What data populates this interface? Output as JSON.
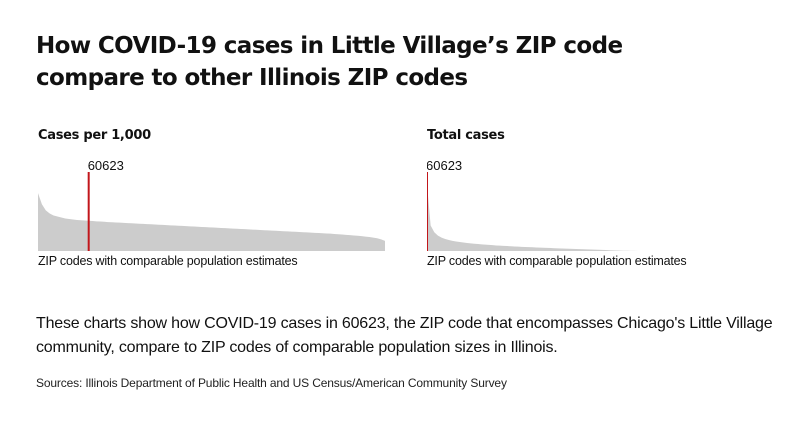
{
  "title_line1": "How COVID-19 cases in Little Village’s ZIP code",
  "title_line2": "compare to other Illinois ZIP codes",
  "chart_data": [
    {
      "type": "area",
      "title": "Cases per 1,000",
      "xlabel": "ZIP codes with comparable population estimates",
      "ylabel": "",
      "highlight": {
        "label": "60623",
        "index": 13
      },
      "values": [
        57,
        46,
        40,
        37,
        35,
        34,
        33,
        32,
        31.5,
        31,
        30.6,
        30.3,
        30,
        29.8,
        29.5,
        29.2,
        29,
        28.8,
        28.5,
        28.3,
        28.1,
        27.9,
        27.7,
        27.5,
        27.3,
        27.1,
        26.9,
        26.7,
        26.5,
        26.3,
        26.1,
        25.9,
        25.7,
        25.5,
        25.3,
        25.1,
        24.9,
        24.7,
        24.5,
        24.3,
        24.1,
        23.9,
        23.7,
        23.5,
        23.3,
        23.1,
        22.9,
        22.7,
        22.5,
        22.3,
        22.1,
        21.9,
        21.7,
        21.5,
        21.3,
        21.1,
        20.9,
        20.7,
        20.5,
        20.3,
        20.1,
        19.9,
        19.7,
        19.5,
        19.3,
        19.1,
        18.9,
        18.7,
        18.5,
        18.3,
        18.1,
        17.9,
        17.7,
        17.5,
        17.3,
        17.1,
        16.8,
        16.5,
        16.2,
        15.9,
        15.6,
        15.3,
        15,
        14.6,
        14.2,
        13.8,
        13.2,
        12.5,
        11.5,
        10
      ],
      "ylim": [
        0,
        66
      ]
    },
    {
      "type": "area",
      "title": "Total cases",
      "xlabel": "ZIP codes with comparable population estimates",
      "ylabel": "",
      "highlight": {
        "label": "60623",
        "index": 0
      },
      "values": [
        100,
        38,
        28,
        23,
        20,
        18,
        16.5,
        15.2,
        14.2,
        13.4,
        12.7,
        12,
        11.4,
        10.9,
        10.4,
        9.9,
        9.5,
        9.1,
        8.7,
        8.3,
        8,
        7.7,
        7.4,
        7.1,
        6.8,
        6.5,
        6.2,
        6,
        5.7,
        5.5,
        5.2,
        5,
        4.8,
        4.6,
        4.4,
        4.2,
        4,
        3.8,
        3.6,
        3.4,
        3.2,
        3,
        2.8,
        2.6,
        2.4,
        2.2,
        2,
        1.8,
        1.6,
        1.4,
        1.2,
        1,
        0.8,
        0.6,
        0.4,
        0.3,
        0.2,
        0.1,
        0.05,
        0
      ],
      "ylim": [
        0,
        100
      ]
    }
  ],
  "description": "These charts show how COVID-19 cases in 60623, the ZIP code that encompasses Chicago's Little Village community, compare to ZIP codes of comparable population sizes in Illinois.",
  "source": "Sources: Illinois Department of Public Health and US Census/American Community Survey",
  "colors": {
    "area_fill": "#cccccc",
    "highlight_line": "#c2161b",
    "text": "#111111"
  }
}
